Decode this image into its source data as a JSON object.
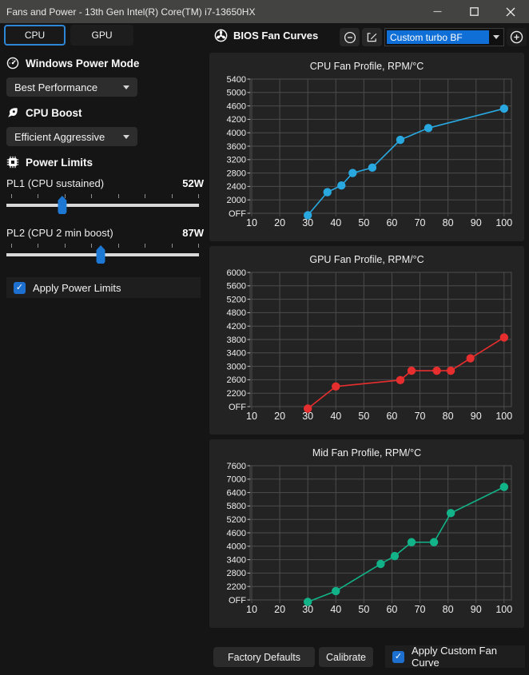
{
  "window": {
    "title": "Fans and Power - 13th Gen Intel(R) Core(TM) i7-13650HX"
  },
  "tabs": {
    "cpu": "CPU",
    "gpu": "GPU"
  },
  "fan_header": {
    "title": "BIOS Fan Curves",
    "preset_value": "Custom turbo BF"
  },
  "left_panel": {
    "power_mode": {
      "label": "Windows Power Mode",
      "value": "Best Performance"
    },
    "cpu_boost": {
      "label": "CPU Boost",
      "value": "Efficient Aggressive"
    },
    "power_limits": {
      "label": "Power Limits",
      "pl1": {
        "label": "PL1 (CPU sustained)",
        "value": "52W",
        "percent": 29
      },
      "pl2": {
        "label": "PL2 (CPU 2 min boost)",
        "value": "87W",
        "percent": 49
      },
      "apply_label": "Apply Power Limits"
    }
  },
  "footer": {
    "factory_defaults": "Factory Defaults",
    "calibrate": "Calibrate",
    "apply_label": "Apply Custom Fan Curve"
  },
  "colors": {
    "accent": "#1d78d4",
    "selection": "#0f6fd6",
    "cpu_line": "#29a8e0",
    "gpu_line": "#e62e2e",
    "mid_line": "#12b388",
    "grid": "#4c4c4c",
    "card_bg": "#232323"
  },
  "chart_data": [
    {
      "type": "line",
      "title": "CPU Fan Profile, RPM/°C",
      "color": "#29a8e0",
      "xlabel": "°C",
      "ylabel": "RPM",
      "x_ticks": [
        10,
        20,
        30,
        40,
        50,
        60,
        70,
        80,
        90,
        100
      ],
      "x_range": [
        10,
        100
      ],
      "grid": true,
      "y_tick_labels": [
        "OFF",
        "2000",
        "2400",
        "2800",
        "3200",
        "3600",
        "4000",
        "4200",
        "4600",
        "5000",
        "5400"
      ],
      "points": [
        {
          "temp": 30,
          "rpm": 0
        },
        {
          "temp": 37,
          "rpm": 2230
        },
        {
          "temp": 42,
          "rpm": 2430
        },
        {
          "temp": 46,
          "rpm": 2800
        },
        {
          "temp": 53,
          "rpm": 2960
        },
        {
          "temp": 63,
          "rpm": 3790
        },
        {
          "temp": 73,
          "rpm": 4070
        },
        {
          "temp": 100,
          "rpm": 4520
        }
      ]
    },
    {
      "type": "line",
      "title": "GPU Fan Profile, RPM/°C",
      "color": "#e62e2e",
      "xlabel": "°C",
      "ylabel": "RPM",
      "x_ticks": [
        10,
        20,
        30,
        40,
        50,
        60,
        70,
        80,
        90,
        100
      ],
      "x_range": [
        10,
        100
      ],
      "grid": true,
      "y_tick_labels": [
        "OFF",
        "2200",
        "2600",
        "3000",
        "3400",
        "3800",
        "4200",
        "4800",
        "5200",
        "5600",
        "6000"
      ],
      "points": [
        {
          "temp": 30,
          "rpm": 0
        },
        {
          "temp": 40,
          "rpm": 2400
        },
        {
          "temp": 63,
          "rpm": 2590
        },
        {
          "temp": 67,
          "rpm": 2870
        },
        {
          "temp": 76,
          "rpm": 2870
        },
        {
          "temp": 81,
          "rpm": 2870
        },
        {
          "temp": 88,
          "rpm": 3240
        },
        {
          "temp": 100,
          "rpm": 3860
        }
      ]
    },
    {
      "type": "line",
      "title": "Mid Fan Profile, RPM/°C",
      "color": "#12b388",
      "xlabel": "°C",
      "ylabel": "RPM",
      "x_ticks": [
        10,
        20,
        30,
        40,
        50,
        60,
        70,
        80,
        90,
        100
      ],
      "x_range": [
        10,
        100
      ],
      "grid": true,
      "y_tick_labels": [
        "OFF",
        "2200",
        "2800",
        "3400",
        "4000",
        "4600",
        "5200",
        "5800",
        "6400",
        "7000",
        "7600"
      ],
      "points": [
        {
          "temp": 30,
          "rpm": 0
        },
        {
          "temp": 40,
          "rpm": 1450
        },
        {
          "temp": 56,
          "rpm": 3210
        },
        {
          "temp": 61,
          "rpm": 3560
        },
        {
          "temp": 67,
          "rpm": 4180
        },
        {
          "temp": 75,
          "rpm": 4180
        },
        {
          "temp": 81,
          "rpm": 5480
        },
        {
          "temp": 100,
          "rpm": 6650
        }
      ]
    }
  ]
}
